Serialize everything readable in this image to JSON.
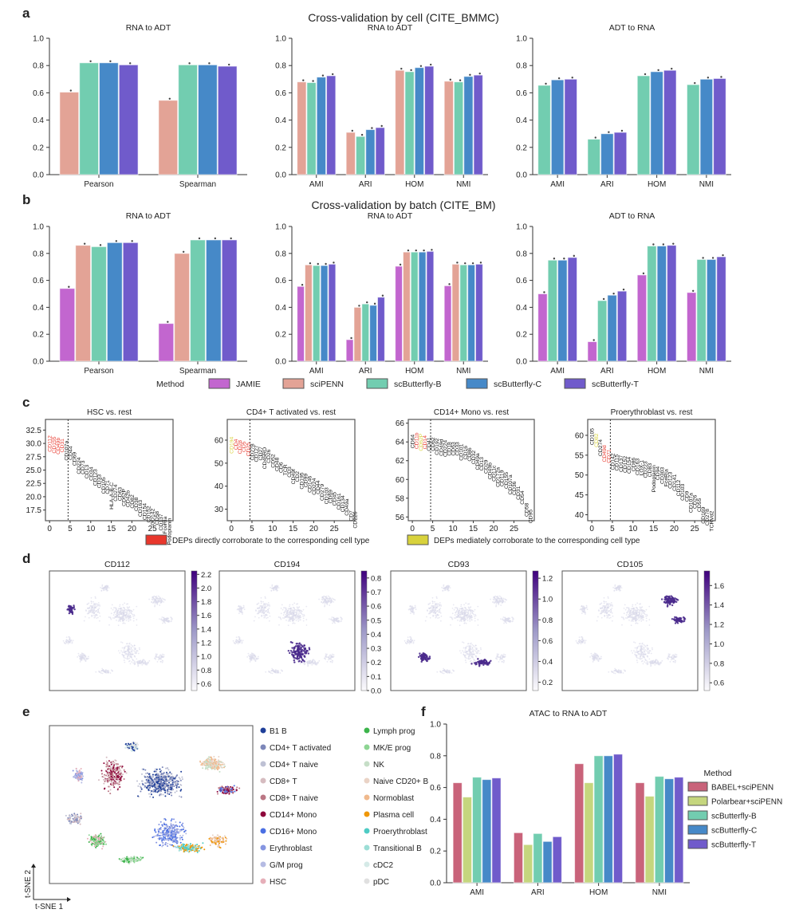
{
  "panels": {
    "a": "a",
    "b": "b",
    "c": "c",
    "d": "d",
    "e": "e",
    "f": "f"
  },
  "titles": {
    "a": "Cross-validation by cell (CITE_BMMC)",
    "b": "Cross-validation by batch (CITE_BM)"
  },
  "colors": {
    "JAMIE": "#c266cf",
    "sciPENN": "#e3a396",
    "scButterfly-B": "#72cdb0",
    "scButterfly-C": "#4689c8",
    "scButterfly-T": "#705bcb",
    "BABEL+sciPENN": "#c9637a",
    "Polarbear+sciPENN": "#c5d67e",
    "direct": "#e8372c",
    "mediate": "#d8d23c"
  },
  "method_legend": {
    "title": "Method",
    "items": [
      "JAMIE",
      "sciPENN",
      "scButterfly-B",
      "scButterfly-C",
      "scButterfly-T"
    ]
  },
  "dep_legend": {
    "direct": "DEPs directly corroborate to the corresponding cell type",
    "mediate": "DEPs mediately corroborate to the corresponding cell type"
  },
  "chart_data": [
    {
      "id": "a1",
      "type": "bar",
      "title": "RNA to ADT",
      "categories": [
        "Pearson",
        "Spearman"
      ],
      "ylim": [
        0,
        1
      ],
      "yticks": [
        "0.0",
        "0.2",
        "0.4",
        "0.6",
        "0.8",
        "1.0"
      ],
      "series": [
        {
          "name": "sciPENN",
          "values": [
            0.605,
            0.545
          ]
        },
        {
          "name": "scButterfly-B",
          "values": [
            0.82,
            0.805
          ]
        },
        {
          "name": "scButterfly-C",
          "values": [
            0.82,
            0.805
          ]
        },
        {
          "name": "scButterfly-T",
          "values": [
            0.805,
            0.795
          ]
        }
      ]
    },
    {
      "id": "a2",
      "type": "bar",
      "title": "RNA to ADT",
      "categories": [
        "AMI",
        "ARI",
        "HOM",
        "NMI"
      ],
      "ylim": [
        0,
        1
      ],
      "yticks": [
        "0.0",
        "0.2",
        "0.4",
        "0.6",
        "0.8",
        "1.0"
      ],
      "series": [
        {
          "name": "sciPENN",
          "values": [
            0.68,
            0.31,
            0.765,
            0.685
          ]
        },
        {
          "name": "scButterfly-B",
          "values": [
            0.675,
            0.28,
            0.755,
            0.68
          ]
        },
        {
          "name": "scButterfly-C",
          "values": [
            0.715,
            0.33,
            0.785,
            0.72
          ]
        },
        {
          "name": "scButterfly-T",
          "values": [
            0.725,
            0.345,
            0.795,
            0.73
          ]
        }
      ]
    },
    {
      "id": "a3",
      "type": "bar",
      "title": "ADT to RNA",
      "categories": [
        "AMI",
        "ARI",
        "HOM",
        "NMI"
      ],
      "ylim": [
        0,
        1
      ],
      "yticks": [
        "0.0",
        "0.2",
        "0.4",
        "0.6",
        "0.8",
        "1.0"
      ],
      "series": [
        {
          "name": "scButterfly-B",
          "values": [
            0.655,
            0.26,
            0.725,
            0.66
          ]
        },
        {
          "name": "scButterfly-C",
          "values": [
            0.695,
            0.3,
            0.755,
            0.7
          ]
        },
        {
          "name": "scButterfly-T",
          "values": [
            0.7,
            0.31,
            0.765,
            0.705
          ]
        }
      ]
    },
    {
      "id": "b1",
      "type": "bar",
      "title": "RNA to ADT",
      "categories": [
        "Pearson",
        "Spearman"
      ],
      "ylim": [
        0,
        1
      ],
      "yticks": [
        "0.0",
        "0.2",
        "0.4",
        "0.6",
        "0.8",
        "1.0"
      ],
      "series": [
        {
          "name": "JAMIE",
          "values": [
            0.54,
            0.28
          ]
        },
        {
          "name": "sciPENN",
          "values": [
            0.86,
            0.8
          ]
        },
        {
          "name": "scButterfly-B",
          "values": [
            0.85,
            0.9
          ]
        },
        {
          "name": "scButterfly-C",
          "values": [
            0.88,
            0.9
          ]
        },
        {
          "name": "scButterfly-T",
          "values": [
            0.88,
            0.9
          ]
        }
      ]
    },
    {
      "id": "b2",
      "type": "bar",
      "title": "RNA to ADT",
      "categories": [
        "AMI",
        "ARI",
        "HOM",
        "NMI"
      ],
      "ylim": [
        0,
        1
      ],
      "yticks": [
        "0.0",
        "0.2",
        "0.4",
        "0.6",
        "0.8",
        "1.0"
      ],
      "series": [
        {
          "name": "JAMIE",
          "values": [
            0.555,
            0.16,
            0.705,
            0.56
          ]
        },
        {
          "name": "sciPENN",
          "values": [
            0.715,
            0.4,
            0.81,
            0.72
          ]
        },
        {
          "name": "scButterfly-B",
          "values": [
            0.71,
            0.425,
            0.81,
            0.715
          ]
        },
        {
          "name": "scButterfly-C",
          "values": [
            0.71,
            0.415,
            0.81,
            0.715
          ]
        },
        {
          "name": "scButterfly-T",
          "values": [
            0.72,
            0.475,
            0.815,
            0.72
          ]
        }
      ]
    },
    {
      "id": "b3",
      "type": "bar",
      "title": "ADT to RNA",
      "categories": [
        "AMI",
        "ARI",
        "HOM",
        "NMI"
      ],
      "ylim": [
        0,
        1
      ],
      "yticks": [
        "0.0",
        "0.2",
        "0.4",
        "0.6",
        "0.8",
        "1.0"
      ],
      "series": [
        {
          "name": "JAMIE",
          "values": [
            0.5,
            0.145,
            0.64,
            0.51
          ]
        },
        {
          "name": "scButterfly-B",
          "values": [
            0.75,
            0.45,
            0.855,
            0.755
          ]
        },
        {
          "name": "scButterfly-C",
          "values": [
            0.75,
            0.49,
            0.855,
            0.755
          ]
        },
        {
          "name": "scButterfly-T",
          "values": [
            0.77,
            0.52,
            0.86,
            0.775
          ]
        }
      ]
    },
    {
      "id": "c1",
      "type": "scatter",
      "title": "HSC vs. rest",
      "xlim": [
        -1,
        30
      ],
      "ylim": [
        15.5,
        34.5
      ],
      "xticks": [
        0,
        5,
        10,
        15,
        20,
        25
      ],
      "yticks": [
        "17.5",
        "20.0",
        "22.5",
        "25.0",
        "27.5",
        "30.0",
        "32.5"
      ],
      "cutoff": 4.5,
      "labels": [
        "CD112",
        "CD155",
        "CD49b",
        "CD31",
        "CD107a",
        "CD44",
        "CD69",
        "CD224",
        "CD73",
        "CD13",
        "CD34",
        "CD123",
        "CD33",
        "CD105",
        "CD71",
        "HLA-A-B-C",
        "CD274",
        "CD63",
        "CD62P",
        "CD42b",
        "CD82",
        "CD38",
        "CD163",
        "CD154",
        "CD152",
        "CD142",
        "CD58",
        "CD137",
        "FceRIa",
        "Podoplanin"
      ],
      "scores": [
        31.5,
        31.3,
        31.1,
        30.9,
        30.5,
        29.5,
        28.4,
        27.4,
        26.8,
        26.0,
        25.6,
        25.2,
        24.2,
        23.7,
        23.1,
        22.7,
        22.3,
        21.8,
        21.5,
        21.2,
        20.4,
        19.9,
        19.4,
        18.8,
        18.3,
        17.8,
        17.3,
        16.8,
        16.3,
        16.0
      ],
      "categories_of_label": [
        "direct",
        "direct",
        "direct",
        "direct"
      ]
    },
    {
      "id": "c2",
      "type": "scatter",
      "title": "CD4+ T activated vs. rest",
      "xlim": [
        -1,
        30
      ],
      "ylim": [
        25,
        69
      ],
      "xticks": [
        0,
        5,
        10,
        15,
        20,
        25
      ],
      "yticks": [
        "30",
        "40",
        "50",
        "60"
      ],
      "cutoff": 4.5,
      "labels": [
        "CD194",
        "CD4",
        "CD28",
        "CD5",
        "CD25",
        "CD278",
        "CD127",
        "CD27",
        "CD45RO",
        "CD26",
        "CD52",
        "CD48",
        "CD6",
        "TCR",
        "CD3",
        "CD49f",
        "CD2",
        "CD195",
        "CD99",
        "CD146",
        "CD224",
        "CD44",
        "CD279",
        "CD103",
        "CD69",
        "CD45",
        "CD161",
        "CD134",
        "CD49a",
        "CD7",
        "CD226"
      ],
      "scores": [
        61.5,
        60.5,
        60.0,
        59.5,
        59.0,
        58.5,
        57.8,
        57.2,
        57.0,
        56.0,
        54.0,
        52.5,
        50.5,
        49.5,
        48.5,
        47.5,
        46.5,
        46.0,
        45.5,
        44.5,
        43.5,
        42.5,
        41.0,
        39.5,
        38.5,
        37.5,
        37.0,
        36.0,
        34.5,
        29.5,
        29.0
      ],
      "categories_of_label": [
        "mediate",
        "direct",
        "direct",
        "direct",
        "direct"
      ]
    },
    {
      "id": "c3",
      "type": "scatter",
      "title": "CD14+ Mono vs. rest",
      "xlim": [
        -1,
        30
      ],
      "ylim": [
        55.6,
        66.4
      ],
      "xticks": [
        0,
        5,
        10,
        15,
        20,
        25
      ],
      "yticks": [
        "56",
        "58",
        "60",
        "62",
        "64",
        "66"
      ],
      "cutoff": 4.5,
      "labels": [
        "CD64",
        "CD11b",
        "CD62P",
        "CD14",
        "CD41",
        "CD62",
        "CD192",
        "CD49d",
        "CD224",
        "CD18",
        "CD63",
        "CD33",
        "CD101",
        "CD16",
        "CD86",
        "CD32",
        "CD49a",
        "CD13",
        "CD29",
        "CD49b",
        "CD11c",
        "CD172a",
        "CD119",
        "CD155",
        "CD107a",
        "CD36",
        "CD31",
        "CD54",
        "CD58",
        "CD95"
      ],
      "scores": [
        64.8,
        65.0,
        64.9,
        64.7,
        64.5,
        64.5,
        64.4,
        64.3,
        64.2,
        64.0,
        64.0,
        64.0,
        63.8,
        63.6,
        63.4,
        63.1,
        62.8,
        62.4,
        62.1,
        61.8,
        61.5,
        61.3,
        61.0,
        60.8,
        60.5,
        59.8,
        59.3,
        58.8,
        57.5,
        56.8
      ],
      "categories_of_label": [
        "none",
        "direct",
        "mediate",
        "direct"
      ]
    },
    {
      "id": "c4",
      "type": "scatter",
      "title": "Proerythroblast vs. rest",
      "xlim": [
        -1,
        30
      ],
      "ylim": [
        38.5,
        64
      ],
      "xticks": [
        0,
        5,
        10,
        15,
        20,
        25
      ],
      "yticks": [
        "40",
        "45",
        "50",
        "55",
        "60"
      ],
      "cutoff": 4.5,
      "labels": [
        "CD105",
        "CD82",
        "CD274",
        "CD49d",
        "CD71",
        "CD142",
        "CD115",
        "CD137",
        "CD152",
        "CD154",
        "CD86",
        "CD163",
        "LOX-1",
        "CD223",
        "CD83",
        "Podoplanin",
        "CD94",
        "CD303",
        "FceRIa",
        "CD123",
        "CD141",
        "CD112",
        "CD103",
        "CD9",
        "CD107a",
        "CD26",
        "CD55",
        "CD169",
        "CD278",
        "TCRVd2"
      ],
      "scores": [
        61.8,
        60.5,
        59.0,
        57.5,
        56.5,
        55.5,
        55.2,
        55.0,
        54.8,
        54.6,
        54.4,
        54.2,
        53.8,
        53.5,
        53.0,
        52.5,
        52.2,
        52.0,
        51.5,
        50.8,
        50.2,
        48.8,
        47.8,
        46.0,
        45.5,
        45.0,
        44.2,
        42.0,
        41.5,
        41.0
      ],
      "categories_of_label": [
        "none",
        "mediate",
        "none",
        "direct",
        "direct"
      ]
    },
    {
      "id": "f",
      "type": "bar",
      "title": "ATAC to RNA to ADT",
      "categories": [
        "AMI",
        "ARI",
        "HOM",
        "NMI"
      ],
      "ylim": [
        0,
        1
      ],
      "yticks": [
        "0.0",
        "0.2",
        "0.4",
        "0.6",
        "0.8",
        "1.0"
      ],
      "legend_title": "Method",
      "series": [
        {
          "name": "BABEL+sciPENN",
          "values": [
            0.63,
            0.315,
            0.75,
            0.63
          ]
        },
        {
          "name": "Polarbear+sciPENN",
          "values": [
            0.54,
            0.24,
            0.63,
            0.545
          ]
        },
        {
          "name": "scButterfly-B",
          "values": [
            0.665,
            0.31,
            0.8,
            0.67
          ]
        },
        {
          "name": "scButterfly-C",
          "values": [
            0.65,
            0.26,
            0.8,
            0.655
          ]
        },
        {
          "name": "scButterfly-T",
          "values": [
            0.66,
            0.29,
            0.81,
            0.665
          ]
        }
      ]
    }
  ],
  "feature_maps": [
    {
      "title": "CD112",
      "colorbar_ticks": [
        "0.6",
        "0.8",
        "1.0",
        "1.2",
        "1.4",
        "1.6",
        "1.8",
        "2.0",
        "2.2"
      ],
      "range": [
        0.5,
        2.25
      ]
    },
    {
      "title": "CD194",
      "colorbar_ticks": [
        "0.0",
        "0.1",
        "0.2",
        "0.3",
        "0.4",
        "0.5",
        "0.6",
        "0.7",
        "0.8"
      ],
      "range": [
        0,
        0.85
      ]
    },
    {
      "title": "CD93",
      "colorbar_ticks": [
        "0.2",
        "0.4",
        "0.6",
        "0.8",
        "1.0",
        "1.2"
      ],
      "range": [
        0.12,
        1.27
      ]
    },
    {
      "title": "CD105",
      "colorbar_ticks": [
        "0.6",
        "0.8",
        "1.0",
        "1.2",
        "1.4",
        "1.6"
      ],
      "range": [
        0.52,
        1.75
      ]
    }
  ],
  "tsne": {
    "xlabel": "t-SNE 1",
    "ylabel": "t-SNE 2",
    "legend": [
      {
        "label": "B1 B",
        "color": "#1f3f99"
      },
      {
        "label": "CD4+ T activated",
        "color": "#7d87b9"
      },
      {
        "label": "CD4+ T naive",
        "color": "#bec1d4"
      },
      {
        "label": "CD8+ T",
        "color": "#d6bcc0"
      },
      {
        "label": "CD8+ T naive",
        "color": "#bb7784"
      },
      {
        "label": "CD14+ Mono",
        "color": "#8e063b"
      },
      {
        "label": "CD16+ Mono",
        "color": "#4a6fe3"
      },
      {
        "label": "Erythroblast",
        "color": "#8595e1"
      },
      {
        "label": "G/M prog",
        "color": "#b5bbe3"
      },
      {
        "label": "HSC",
        "color": "#e6afb9"
      },
      {
        "label": "Lymph prog",
        "color": "#3cb44b"
      },
      {
        "label": "MK/E prog",
        "color": "#8dd593"
      },
      {
        "label": "NK",
        "color": "#c6dec7"
      },
      {
        "label": "Naive CD20+ B",
        "color": "#ead3c6"
      },
      {
        "label": "Normoblast",
        "color": "#f0b98d"
      },
      {
        "label": "Plasma cell",
        "color": "#ef9708"
      },
      {
        "label": "Proerythroblast",
        "color": "#4ecbc4"
      },
      {
        "label": "Transitional B",
        "color": "#9cded6"
      },
      {
        "label": "cDC2",
        "color": "#d5eae7"
      },
      {
        "label": "pDC",
        "color": "#e0e0e0"
      }
    ]
  }
}
